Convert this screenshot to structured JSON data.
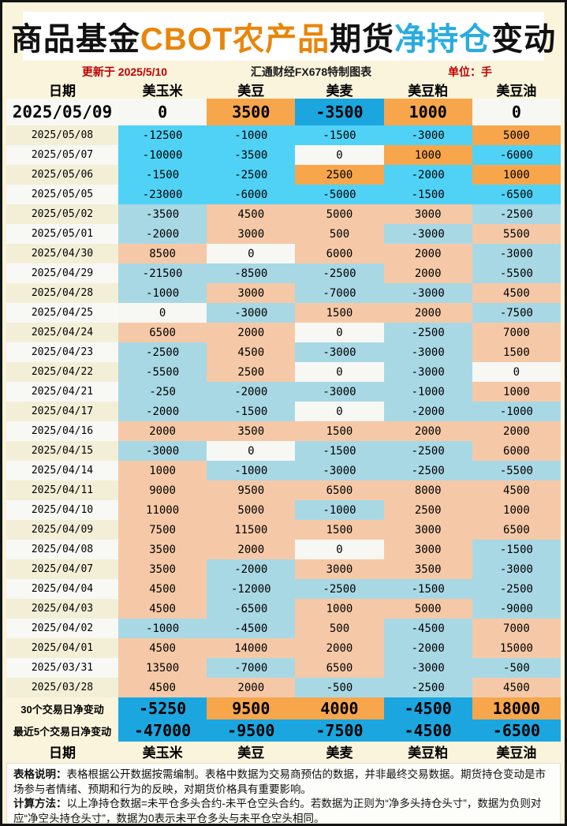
{
  "title": {
    "segments": [
      {
        "text": "商品基金",
        "tone": "black"
      },
      {
        "text": "CBOT农产品",
        "tone": "orange"
      },
      {
        "text": "期货",
        "tone": "black"
      },
      {
        "text": "净持仓",
        "tone": "blue"
      },
      {
        "text": "变动",
        "tone": "black"
      }
    ]
  },
  "subtitle": {
    "updated": "更新于 2025/5/10",
    "source": "汇通财经FX678特制图表",
    "unit": "单位：手"
  },
  "columns": [
    "日期",
    "美玉米",
    "美豆",
    "美麦",
    "美豆粕",
    "美豆油"
  ],
  "rows": [
    {
      "date": "2025/05/09",
      "em": true,
      "values": [
        "0",
        "3500",
        "-3500",
        "1000",
        "0"
      ],
      "styles": [
        "white",
        "orange",
        "blue",
        "orange",
        "white"
      ]
    },
    {
      "date": "2025/05/08",
      "values": [
        "-12500",
        "-1000",
        "-1500",
        "-3000",
        "5000"
      ],
      "styles": [
        "cyan",
        "cyan",
        "cyan",
        "cyan",
        "orange"
      ]
    },
    {
      "date": "2025/05/07",
      "values": [
        "-10000",
        "-3500",
        "0",
        "1000",
        "-6000"
      ],
      "styles": [
        "cyan",
        "cyan",
        "white",
        "orange",
        "cyan"
      ]
    },
    {
      "date": "2025/05/06",
      "values": [
        "-1500",
        "-2500",
        "2500",
        "-2000",
        "1000"
      ],
      "styles": [
        "cyan",
        "cyan",
        "orange",
        "cyan",
        "orange"
      ]
    },
    {
      "date": "2025/05/05",
      "values": [
        "-23000",
        "-6000",
        "-5000",
        "-1500",
        "-6500"
      ],
      "styles": [
        "cyan",
        "cyan",
        "cyan",
        "cyan",
        "cyan"
      ]
    },
    {
      "date": "2025/05/02",
      "values": [
        "-3500",
        "4500",
        "5000",
        "3000",
        "-2500"
      ],
      "styles": [
        "lightblue",
        "salmon",
        "salmon",
        "salmon",
        "lightblue"
      ]
    },
    {
      "date": "2025/05/01",
      "values": [
        "-2000",
        "3000",
        "500",
        "-3000",
        "5500"
      ],
      "styles": [
        "lightblue",
        "salmon",
        "salmon",
        "lightblue",
        "salmon"
      ]
    },
    {
      "date": "2025/04/30",
      "values": [
        "8500",
        "0",
        "6000",
        "2000",
        "-3000"
      ],
      "styles": [
        "salmon",
        "white",
        "salmon",
        "salmon",
        "lightblue"
      ]
    },
    {
      "date": "2025/04/29",
      "values": [
        "-21500",
        "-8500",
        "-2500",
        "2000",
        "-5500"
      ],
      "styles": [
        "lightblue",
        "lightblue",
        "lightblue",
        "salmon",
        "lightblue"
      ]
    },
    {
      "date": "2025/04/28",
      "values": [
        "-1000",
        "3000",
        "-7000",
        "-3000",
        "4500"
      ],
      "styles": [
        "lightblue",
        "salmon",
        "lightblue",
        "lightblue",
        "salmon"
      ]
    },
    {
      "date": "2025/04/25",
      "values": [
        "0",
        "-3000",
        "1500",
        "2000",
        "-7500"
      ],
      "styles": [
        "white",
        "lightblue",
        "salmon",
        "salmon",
        "lightblue"
      ]
    },
    {
      "date": "2025/04/24",
      "values": [
        "6500",
        "2000",
        "0",
        "-2500",
        "7000"
      ],
      "styles": [
        "salmon",
        "salmon",
        "white",
        "lightblue",
        "salmon"
      ]
    },
    {
      "date": "2025/04/23",
      "values": [
        "-2500",
        "4500",
        "-3000",
        "-3000",
        "1500"
      ],
      "styles": [
        "lightblue",
        "salmon",
        "lightblue",
        "lightblue",
        "salmon"
      ]
    },
    {
      "date": "2025/04/22",
      "values": [
        "-5500",
        "2500",
        "0",
        "-3000",
        "0"
      ],
      "styles": [
        "lightblue",
        "salmon",
        "white",
        "lightblue",
        "white"
      ]
    },
    {
      "date": "2025/04/21",
      "values": [
        "-250",
        "-2000",
        "-3000",
        "-1000",
        "1000"
      ],
      "styles": [
        "lightblue",
        "lightblue",
        "lightblue",
        "lightblue",
        "salmon"
      ]
    },
    {
      "date": "2025/04/17",
      "values": [
        "-2000",
        "-1500",
        "0",
        "-2000",
        "-1000"
      ],
      "styles": [
        "lightblue",
        "lightblue",
        "white",
        "lightblue",
        "lightblue"
      ]
    },
    {
      "date": "2025/04/16",
      "values": [
        "2000",
        "3500",
        "1500",
        "2000",
        "2000"
      ],
      "styles": [
        "salmon",
        "salmon",
        "salmon",
        "salmon",
        "salmon"
      ]
    },
    {
      "date": "2025/04/15",
      "values": [
        "-3000",
        "0",
        "-1500",
        "-2500",
        "6000"
      ],
      "styles": [
        "lightblue",
        "white",
        "lightblue",
        "lightblue",
        "salmon"
      ]
    },
    {
      "date": "2025/04/14",
      "values": [
        "1000",
        "-1000",
        "-3000",
        "-2500",
        "-5500"
      ],
      "styles": [
        "salmon",
        "lightblue",
        "lightblue",
        "lightblue",
        "lightblue"
      ]
    },
    {
      "date": "2025/04/11",
      "values": [
        "9000",
        "9500",
        "6500",
        "8000",
        "4500"
      ],
      "styles": [
        "salmon",
        "salmon",
        "salmon",
        "salmon",
        "salmon"
      ]
    },
    {
      "date": "2025/04/10",
      "values": [
        "11000",
        "5000",
        "-1000",
        "2500",
        "1000"
      ],
      "styles": [
        "salmon",
        "salmon",
        "lightblue",
        "salmon",
        "salmon"
      ]
    },
    {
      "date": "2025/04/09",
      "values": [
        "7500",
        "11500",
        "1500",
        "3000",
        "6500"
      ],
      "styles": [
        "salmon",
        "salmon",
        "salmon",
        "salmon",
        "salmon"
      ]
    },
    {
      "date": "2025/04/08",
      "values": [
        "3500",
        "2000",
        "0",
        "3000",
        "-1500"
      ],
      "styles": [
        "salmon",
        "salmon",
        "white",
        "salmon",
        "lightblue"
      ]
    },
    {
      "date": "2025/04/07",
      "values": [
        "3500",
        "-2000",
        "3000",
        "3500",
        "-3000"
      ],
      "styles": [
        "salmon",
        "lightblue",
        "salmon",
        "salmon",
        "lightblue"
      ]
    },
    {
      "date": "2025/04/04",
      "values": [
        "4500",
        "-12000",
        "-2500",
        "-1500",
        "-2500"
      ],
      "styles": [
        "salmon",
        "lightblue",
        "lightblue",
        "lightblue",
        "lightblue"
      ]
    },
    {
      "date": "2025/04/03",
      "values": [
        "4500",
        "-6500",
        "1000",
        "5000",
        "-9000"
      ],
      "styles": [
        "salmon",
        "lightblue",
        "salmon",
        "salmon",
        "lightblue"
      ]
    },
    {
      "date": "2025/04/02",
      "values": [
        "-1000",
        "-4500",
        "500",
        "-4500",
        "7000"
      ],
      "styles": [
        "lightblue",
        "lightblue",
        "salmon",
        "lightblue",
        "salmon"
      ]
    },
    {
      "date": "2025/04/01",
      "values": [
        "4500",
        "14000",
        "2000",
        "-2000",
        "15000"
      ],
      "styles": [
        "salmon",
        "salmon",
        "salmon",
        "lightblue",
        "salmon"
      ]
    },
    {
      "date": "2025/03/31",
      "values": [
        "13500",
        "-7000",
        "6500",
        "-3000",
        "-500"
      ],
      "styles": [
        "salmon",
        "lightblue",
        "salmon",
        "lightblue",
        "lightblue"
      ]
    },
    {
      "date": "2025/03/28",
      "values": [
        "4500",
        "2000",
        "-500",
        "-2500",
        "4500"
      ],
      "styles": [
        "salmon",
        "salmon",
        "lightblue",
        "lightblue",
        "salmon"
      ]
    }
  ],
  "summary": [
    {
      "label": "30个交易日净变动",
      "values": [
        "-5250",
        "9500",
        "4000",
        "-4500",
        "18000"
      ],
      "styles": [
        "blue",
        "orange",
        "orange",
        "blue",
        "orange"
      ]
    },
    {
      "label": "最近5个交易日净变动",
      "values": [
        "-47000",
        "-9500",
        "-7500",
        "-4500",
        "-6500"
      ],
      "styles": [
        "blue",
        "blue",
        "blue",
        "blue",
        "blue"
      ]
    }
  ],
  "notes": [
    {
      "lead": "表格说明：",
      "text": "表格根据公开数据按需编制。表格中数据为交易商预估的数据，并非最终交易数据。期货持仓变动是市场参与者情绪、预期和行为的反映，对期货价格具有重要影响。"
    },
    {
      "lead": "计算方法：",
      "text": "以上净持仓数据=未平仓多头合约-未平仓空头合约。若数据为正则为“净多头持仓头寸”，数据为负则对应“净空头持仓头寸”，数据为0表示未平仓多头与未平仓空头相同。"
    }
  ],
  "colors": {
    "positive_strong": "#F7A64B",
    "negative_strong": "#1CA6E0",
    "positive_recent": "#F7A64B",
    "negative_recent": "#4FD2F6",
    "positive_soft": "#F5C9A7",
    "negative_soft": "#A9D8E5",
    "zero": "#F7F7F3",
    "title_orange": "#E8860B",
    "title_blue": "#29ABE2",
    "accent_red": "#C00000",
    "page_bg": "#FAF4DC"
  },
  "chart_data": {
    "type": "table",
    "title": "商品基金CBOT农产品期货净持仓变动",
    "unit": "手",
    "updated": "2025/5/10",
    "columns": [
      "日期",
      "美玉米",
      "美豆",
      "美麦",
      "美豆粕",
      "美豆油"
    ],
    "rows": [
      [
        "2025/05/09",
        0,
        3500,
        -3500,
        1000,
        0
      ],
      [
        "2025/05/08",
        -12500,
        -1000,
        -1500,
        -3000,
        5000
      ],
      [
        "2025/05/07",
        -10000,
        -3500,
        0,
        1000,
        -6000
      ],
      [
        "2025/05/06",
        -1500,
        -2500,
        2500,
        -2000,
        1000
      ],
      [
        "2025/05/05",
        -23000,
        -6000,
        -5000,
        -1500,
        -6500
      ],
      [
        "2025/05/02",
        -3500,
        4500,
        5000,
        3000,
        -2500
      ],
      [
        "2025/05/01",
        -2000,
        3000,
        500,
        -3000,
        5500
      ],
      [
        "2025/04/30",
        8500,
        0,
        6000,
        2000,
        -3000
      ],
      [
        "2025/04/29",
        -21500,
        -8500,
        -2500,
        2000,
        -5500
      ],
      [
        "2025/04/28",
        -1000,
        3000,
        -7000,
        -3000,
        4500
      ],
      [
        "2025/04/25",
        0,
        -3000,
        1500,
        2000,
        -7500
      ],
      [
        "2025/04/24",
        6500,
        2000,
        0,
        -2500,
        7000
      ],
      [
        "2025/04/23",
        -2500,
        4500,
        -3000,
        -3000,
        1500
      ],
      [
        "2025/04/22",
        -5500,
        2500,
        0,
        -3000,
        0
      ],
      [
        "2025/04/21",
        -250,
        -2000,
        -3000,
        -1000,
        1000
      ],
      [
        "2025/04/17",
        -2000,
        -1500,
        0,
        -2000,
        -1000
      ],
      [
        "2025/04/16",
        2000,
        3500,
        1500,
        2000,
        2000
      ],
      [
        "2025/04/15",
        -3000,
        0,
        -1500,
        -2500,
        6000
      ],
      [
        "2025/04/14",
        1000,
        -1000,
        -3000,
        -2500,
        -5500
      ],
      [
        "2025/04/11",
        9000,
        9500,
        6500,
        8000,
        4500
      ],
      [
        "2025/04/10",
        11000,
        5000,
        -1000,
        2500,
        1000
      ],
      [
        "2025/04/09",
        7500,
        11500,
        1500,
        3000,
        6500
      ],
      [
        "2025/04/08",
        3500,
        2000,
        0,
        3000,
        -1500
      ],
      [
        "2025/04/07",
        3500,
        -2000,
        3000,
        3500,
        -3000
      ],
      [
        "2025/04/04",
        4500,
        -12000,
        -2500,
        -1500,
        -2500
      ],
      [
        "2025/04/03",
        4500,
        -6500,
        1000,
        5000,
        -9000
      ],
      [
        "2025/04/02",
        -1000,
        -4500,
        500,
        -4500,
        7000
      ],
      [
        "2025/04/01",
        4500,
        14000,
        2000,
        -2000,
        15000
      ],
      [
        "2025/03/31",
        13500,
        -7000,
        6500,
        -3000,
        -500
      ],
      [
        "2025/03/28",
        4500,
        2000,
        -500,
        -2500,
        4500
      ]
    ],
    "summary_rows": [
      [
        "30个交易日净变动",
        -5250,
        9500,
        4000,
        -4500,
        18000
      ],
      [
        "最近5个交易日净变动",
        -47000,
        -9500,
        -7500,
        -4500,
        -6500
      ]
    ]
  }
}
